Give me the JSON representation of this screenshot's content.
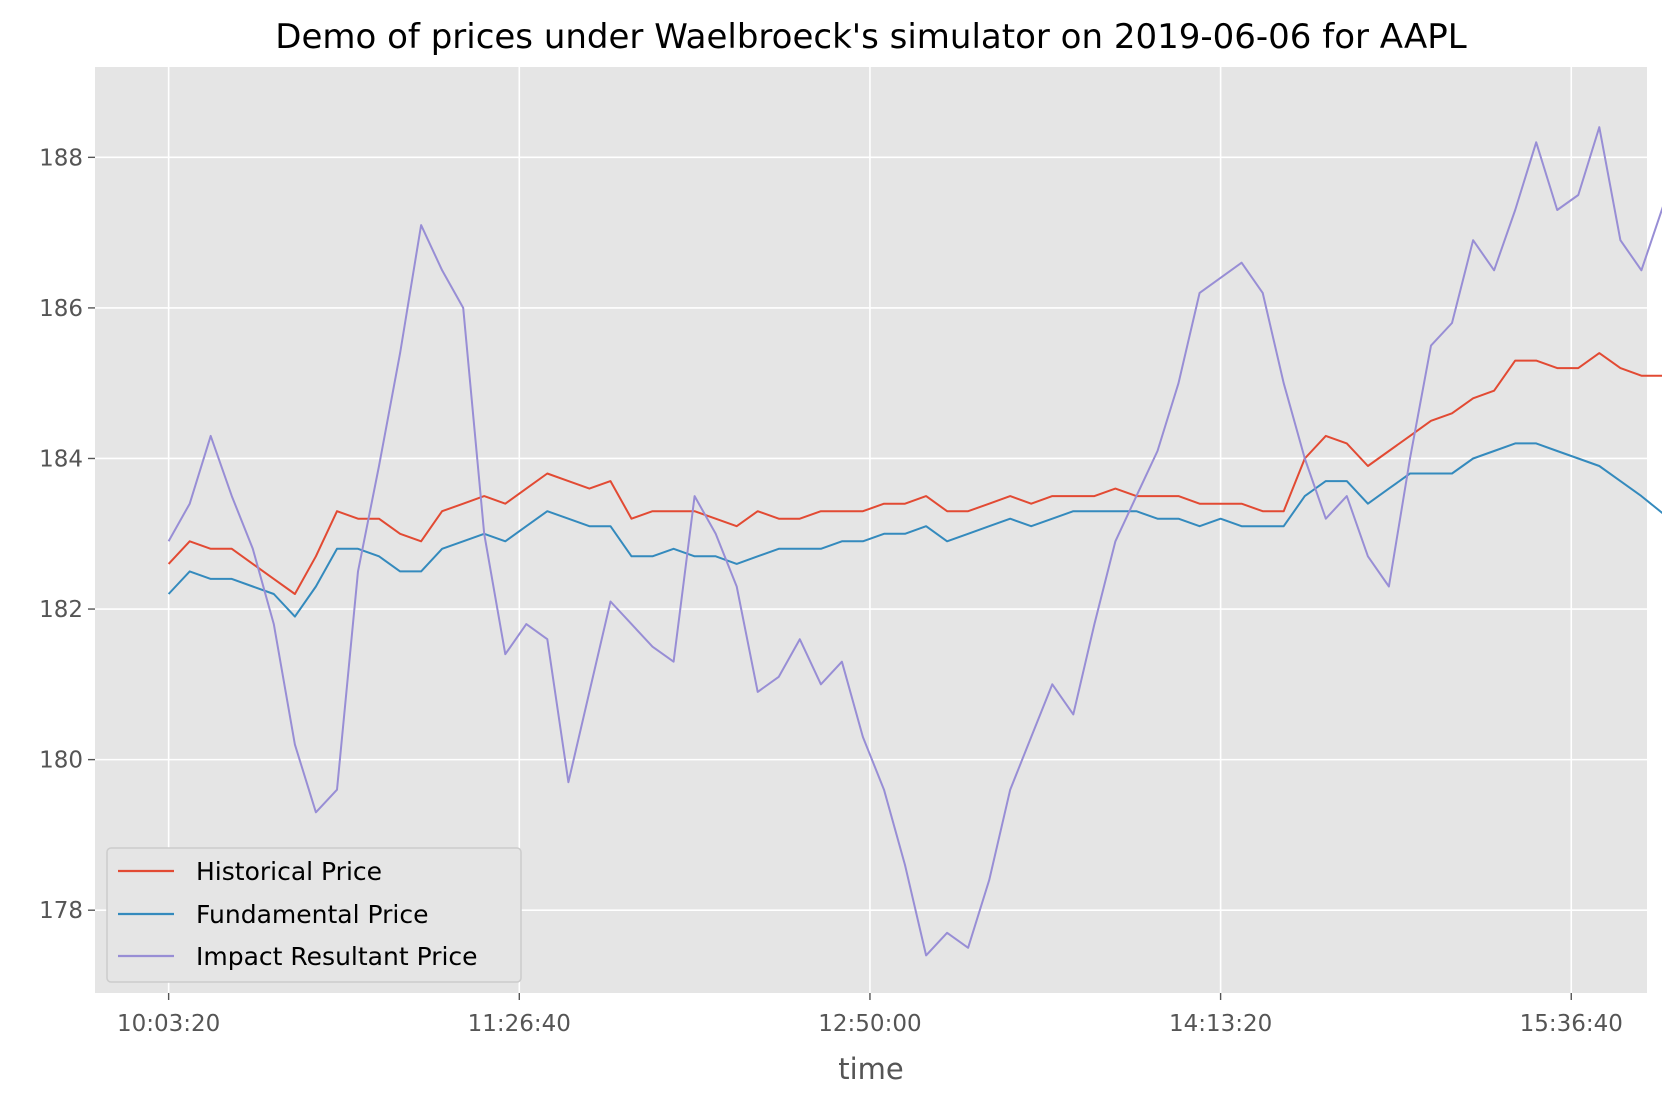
{
  "chart_data": {
    "type": "line",
    "title": "Demo of prices under Waelbroeck's simulator on 2019-06-06 for AAPL",
    "xlabel": "time",
    "ylabel": "",
    "x_ticks": [
      "10:03:20",
      "11:26:40",
      "12:50:00",
      "14:13:20",
      "15:36:40"
    ],
    "x_tick_seconds": [
      36200,
      41200,
      46200,
      51200,
      56200
    ],
    "xlim_seconds": [
      35150,
      57280
    ],
    "y_ticks": [
      178,
      180,
      182,
      184,
      186,
      188
    ],
    "ylim": [
      176.9,
      189.2
    ],
    "grid": true,
    "legend_position": "lower-left",
    "x_seconds": [
      36200,
      36500,
      36800,
      37100,
      37400,
      37700,
      38000,
      38300,
      38600,
      38900,
      39200,
      39500,
      39800,
      40100,
      40400,
      40700,
      41000,
      41300,
      41600,
      41900,
      42200,
      42500,
      42800,
      43100,
      43400,
      43700,
      44000,
      44300,
      44600,
      44900,
      45200,
      45500,
      45800,
      46100,
      46400,
      46700,
      47000,
      47300,
      47600,
      47900,
      48200,
      48500,
      48800,
      49100,
      49400,
      49700,
      50000,
      50300,
      50600,
      50900,
      51200,
      51500,
      51800,
      52100,
      52400,
      52700,
      53000,
      53300,
      53600,
      53900,
      54200,
      54500,
      54800,
      55100,
      55400,
      55700,
      56000,
      56300,
      56600,
      56900,
      57200,
      57600
    ],
    "series": [
      {
        "name": "Historical Price",
        "color": "#E24A33",
        "values": [
          182.6,
          182.9,
          182.8,
          182.8,
          182.6,
          182.4,
          182.2,
          182.7,
          183.3,
          183.2,
          183.2,
          183.0,
          182.9,
          183.3,
          183.4,
          183.5,
          183.4,
          183.6,
          183.8,
          183.7,
          183.6,
          183.7,
          183.2,
          183.3,
          183.3,
          183.3,
          183.2,
          183.1,
          183.3,
          183.2,
          183.2,
          183.3,
          183.3,
          183.3,
          183.4,
          183.4,
          183.5,
          183.3,
          183.3,
          183.4,
          183.5,
          183.4,
          183.5,
          183.5,
          183.5,
          183.6,
          183.5,
          183.5,
          183.5,
          183.4,
          183.4,
          183.4,
          183.3,
          183.3,
          184.0,
          184.3,
          184.2,
          183.9,
          184.1,
          184.3,
          184.5,
          184.6,
          184.8,
          184.9,
          185.3,
          185.3,
          185.2,
          185.2,
          185.4,
          185.2,
          185.1,
          185.1
        ]
      },
      {
        "name": "Fundamental Price",
        "color": "#348ABD",
        "values": [
          182.2,
          182.5,
          182.4,
          182.4,
          182.3,
          182.2,
          181.9,
          182.3,
          182.8,
          182.8,
          182.7,
          182.5,
          182.5,
          182.8,
          182.9,
          183.0,
          182.9,
          183.1,
          183.3,
          183.2,
          183.1,
          183.1,
          182.7,
          182.7,
          182.8,
          182.7,
          182.7,
          182.6,
          182.7,
          182.8,
          182.8,
          182.8,
          182.9,
          182.9,
          183.0,
          183.0,
          183.1,
          182.9,
          183.0,
          183.1,
          183.2,
          183.1,
          183.2,
          183.3,
          183.3,
          183.3,
          183.3,
          183.2,
          183.2,
          183.1,
          183.2,
          183.1,
          183.1,
          183.1,
          183.5,
          183.7,
          183.7,
          183.4,
          183.6,
          183.8,
          183.8,
          183.8,
          184.0,
          184.1,
          184.2,
          184.2,
          184.1,
          184.0,
          183.9,
          183.7,
          183.5,
          183.2
        ]
      },
      {
        "name": "Impact Resultant Price",
        "color": "#988ED5",
        "values": [
          182.9,
          183.4,
          184.3,
          183.5,
          182.8,
          181.8,
          180.2,
          179.3,
          179.6,
          182.5,
          183.9,
          185.4,
          187.1,
          186.5,
          186.0,
          183.0,
          181.4,
          181.8,
          181.6,
          179.7,
          180.9,
          182.1,
          181.8,
          181.5,
          181.3,
          183.5,
          183.0,
          182.3,
          180.9,
          181.1,
          181.6,
          181.0,
          181.3,
          180.3,
          179.6,
          178.6,
          177.4,
          177.7,
          177.5,
          178.4,
          179.6,
          180.3,
          181.0,
          180.6,
          181.8,
          182.9,
          183.5,
          184.1,
          185.0,
          186.2,
          186.4,
          186.6,
          186.2,
          185.0,
          184.0,
          183.2,
          183.5,
          182.7,
          182.3,
          184.0,
          185.5,
          185.8,
          186.9,
          186.5,
          187.3,
          188.2,
          187.3,
          187.5,
          188.4,
          186.9,
          186.5,
          187.6
        ]
      }
    ]
  }
}
